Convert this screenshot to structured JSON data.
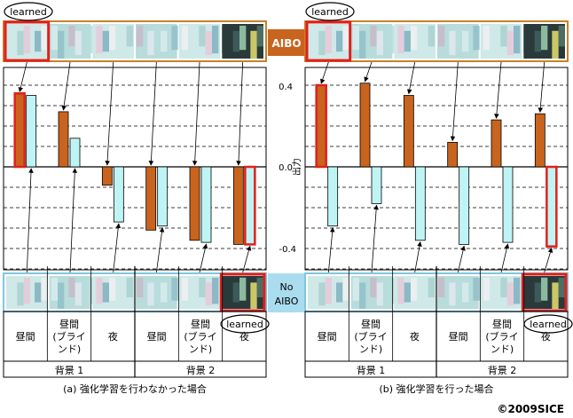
{
  "figure": {
    "copyright": "©2009SICE",
    "badge_aibo": "AIBO",
    "badge_no_aibo_line1": "No",
    "badge_no_aibo_line2": "AIBO",
    "learned_label": "learned",
    "y_axis_label": "出力",
    "y_ticks": [
      "0.4",
      "0.0",
      "-0.4"
    ]
  },
  "colors": {
    "aibo_bar": "#c8641e",
    "no_aibo_bar": "#bff4f4",
    "aibo_band_border": "#c8822a",
    "no_aibo_band_border": "#7fc7e0",
    "highlight": "#e0201c",
    "badge_aibo_bg": "#c8641e",
    "badge_no_aibo_bg": "#a9dcef"
  },
  "chart_data": [
    {
      "type": "bar",
      "caption": "(a) 強化学習を行わなかった場合",
      "categories": [
        "昼間",
        "昼間(ブラインド)",
        "夜",
        "昼間",
        "昼間(ブラインド)",
        "夜"
      ],
      "category_lines": [
        [
          "昼間"
        ],
        [
          "昼間",
          "(ブライ",
          "ンド)"
        ],
        [
          "夜"
        ],
        [
          "昼間"
        ],
        [
          "昼間",
          "(ブライ",
          "ンド)"
        ],
        [
          "夜"
        ]
      ],
      "groups": [
        {
          "label": "背景 1",
          "span": 3
        },
        {
          "label": "背景 2",
          "span": 3
        }
      ],
      "series": [
        {
          "name": "AIBO",
          "values": [
            0.36,
            0.27,
            -0.09,
            -0.31,
            -0.36,
            -0.38
          ]
        },
        {
          "name": "No AIBO",
          "values": [
            0.35,
            0.14,
            -0.27,
            -0.29,
            -0.37,
            -0.38
          ]
        }
      ],
      "highlight": [
        {
          "series": 0,
          "index": 0
        },
        {
          "series": 1,
          "index": 5
        }
      ],
      "ylim": [
        -0.5,
        0.5
      ],
      "grid": "dashed horizontal"
    },
    {
      "type": "bar",
      "caption": "(b) 強化学習を行った場合",
      "categories": [
        "昼間",
        "昼間(ブラインド)",
        "夜",
        "昼間",
        "昼間(ブラインド)",
        "夜"
      ],
      "category_lines": [
        [
          "昼間"
        ],
        [
          "昼間",
          "(ブライ",
          "ンド)"
        ],
        [
          "夜"
        ],
        [
          "昼間"
        ],
        [
          "昼間",
          "(ブライ",
          "ンド)"
        ],
        [
          "夜"
        ]
      ],
      "groups": [
        {
          "label": "背景 1",
          "span": 3
        },
        {
          "label": "背景 2",
          "span": 3
        }
      ],
      "series": [
        {
          "name": "AIBO",
          "values": [
            0.4,
            0.41,
            0.35,
            0.12,
            0.23,
            0.26
          ]
        },
        {
          "name": "No AIBO",
          "values": [
            -0.29,
            -0.18,
            -0.36,
            -0.38,
            -0.37,
            -0.39
          ]
        }
      ],
      "highlight": [
        {
          "series": 0,
          "index": 0
        },
        {
          "series": 1,
          "index": 5
        }
      ],
      "y_ticks": [
        0.4,
        0.0,
        -0.4
      ],
      "ylabel": "出力",
      "ylim": [
        -0.5,
        0.5
      ],
      "grid": "dashed horizontal"
    }
  ]
}
